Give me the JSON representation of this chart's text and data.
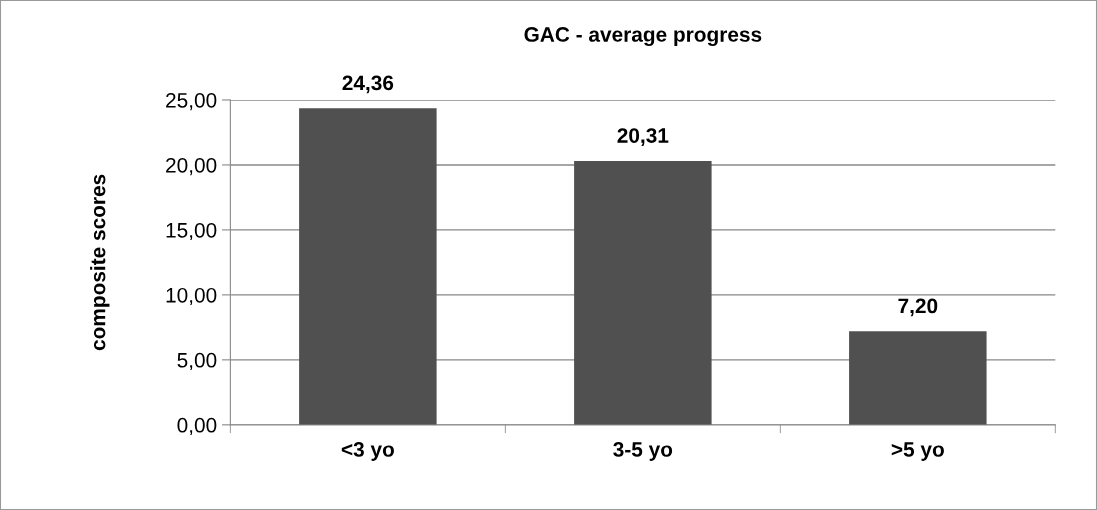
{
  "chart_data": {
    "type": "bar",
    "title": "GAC - average progress",
    "ylabel": "composite scores",
    "categories": [
      "<3 yo",
      "3-5 yo",
      ">5 yo"
    ],
    "values": [
      24.36,
      20.31,
      7.2
    ],
    "value_labels": [
      "24,36",
      "20,31",
      "7,20"
    ],
    "color": "#505050",
    "ylim": [
      0,
      25
    ],
    "yticks": [
      {
        "value": 0,
        "label": "0,00"
      },
      {
        "value": 5,
        "label": "5,00"
      },
      {
        "value": 10,
        "label": "10,00"
      },
      {
        "value": 15,
        "label": "15,00"
      },
      {
        "value": 20,
        "label": "20,00"
      },
      {
        "value": 25,
        "label": "25,00"
      }
    ],
    "grid": "y",
    "legend": false
  }
}
